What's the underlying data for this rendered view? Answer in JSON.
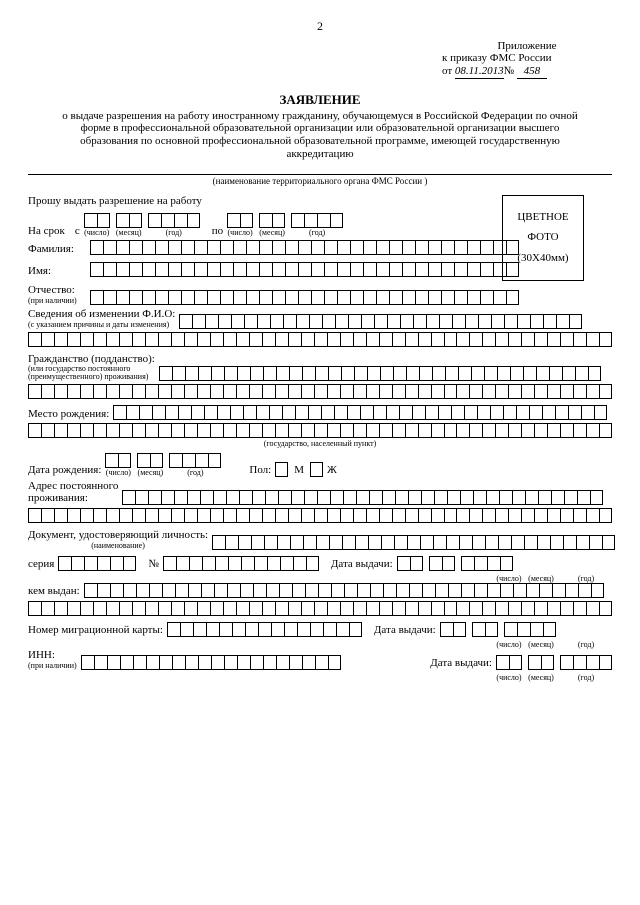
{
  "page_number": "2",
  "attachment": {
    "line1": "Приложение",
    "line2": "к приказу ФМС России",
    "from": "от",
    "date": "08.11.2013",
    "num_lbl": "№",
    "num": "458"
  },
  "title": "ЗАЯВЛЕНИЕ",
  "subtitle": "о выдаче разрешения на работу иностранному гражданину, обучающемуся в Российской Федерации по очной форме в профессиональной образовательной организации или образовательной организации высшего образования по основной профессиональной образовательной программе, имеющей государственную аккредитацию",
  "org_caption": "(наименование территориального органа ФМС России )",
  "request": "Прошу выдать разрешение на работу",
  "photo": {
    "l1": "ЦВЕТНОЕ",
    "l2": "ФОТО",
    "l3": "(30X40мм)"
  },
  "term": {
    "lbl": "На срок",
    "from": "с",
    "to": "по",
    "d": "(число)",
    "m": "(месяц)",
    "y": "(год)"
  },
  "surname": "Фамилия:",
  "name": "Имя:",
  "patronymic": "Отчество:",
  "patronymic_sub": "(при наличии)",
  "fio_change": "Сведения об изменении Ф.И.О:",
  "fio_change_sub": "(с указанием причины и даты изменения)",
  "citizenship": "Гражданство (подданство):",
  "citizenship_sub1": "(или государство постоянного",
  "citizenship_sub2": "(преимущественного) проживания)",
  "birthplace": "Место рождения:",
  "birthplace_cap": "(государство, населенный пункт)",
  "dob": "Дата рождения:",
  "sex": {
    "lbl": "Пол:",
    "m": "М",
    "f": "Ж"
  },
  "address": "Адрес постоянного",
  "address2": "проживания:",
  "iddoc": "Документ, удостоверяющий личность:",
  "iddoc_sub": "(наименование)",
  "series": "серия",
  "number": "№",
  "issue_date": "Дата выдачи:",
  "issued_by": "кем выдан:",
  "migcard": "Номер миграционной карты:",
  "inn": "ИНН:",
  "inn_sub": "(при наличии)",
  "cap_d": "(число)",
  "cap_m": "(месяц)",
  "cap_y": "(год)"
}
